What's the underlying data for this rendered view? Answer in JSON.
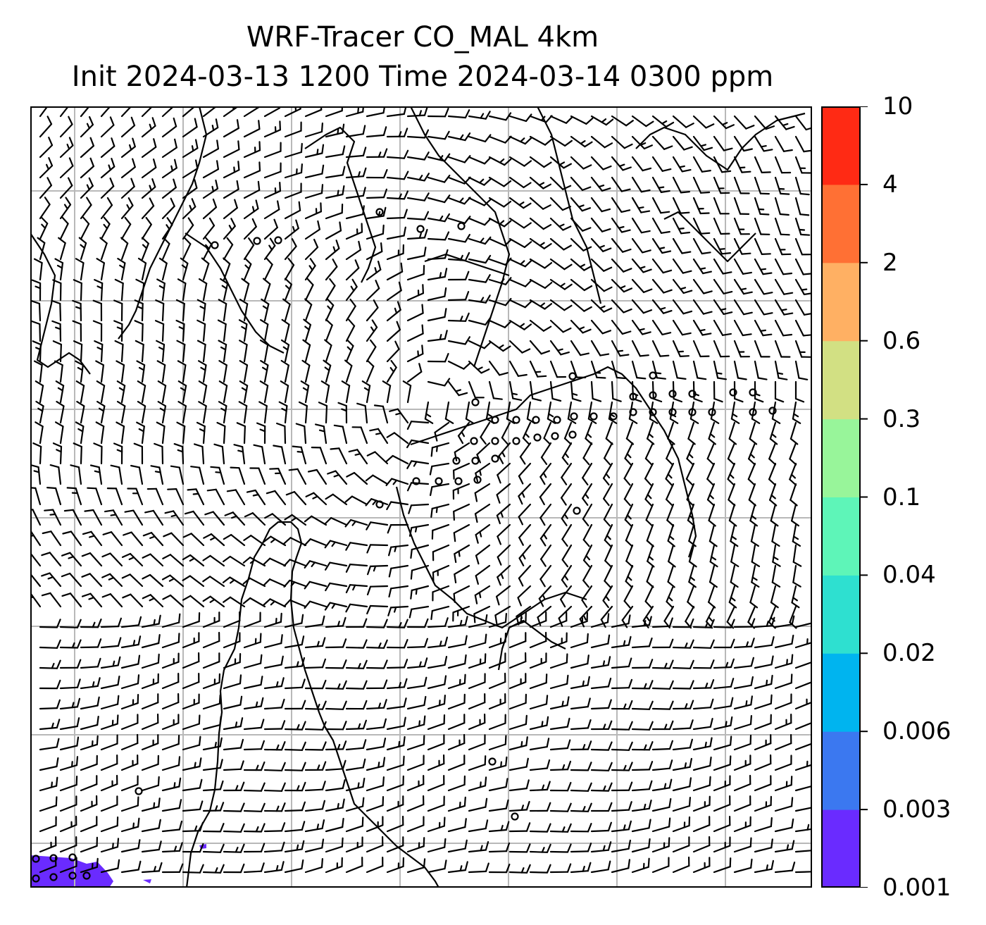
{
  "title": {
    "line1": "WRF-Tracer CO_MAL 4km",
    "line2": "Init 2024-03-13 1200 Time 2024-03-14 0300 ppm"
  },
  "colorbar": {
    "ticks": [
      "10",
      "4",
      "2",
      "0.6",
      "0.3",
      "0.1",
      "0.04",
      "0.02",
      "0.006",
      "0.003",
      "0.001"
    ],
    "colors": [
      "#6a2bff",
      "#3b78f0",
      "#00b4ef",
      "#2ee0d0",
      "#5ef5b8",
      "#98f59a",
      "#d2e083",
      "#ffb063",
      "#ff7034",
      "#ff2a14"
    ]
  },
  "map": {
    "grid": "on",
    "wind_barbs": "on",
    "coastlines": "on",
    "plume_color": "#6a2bff"
  }
}
